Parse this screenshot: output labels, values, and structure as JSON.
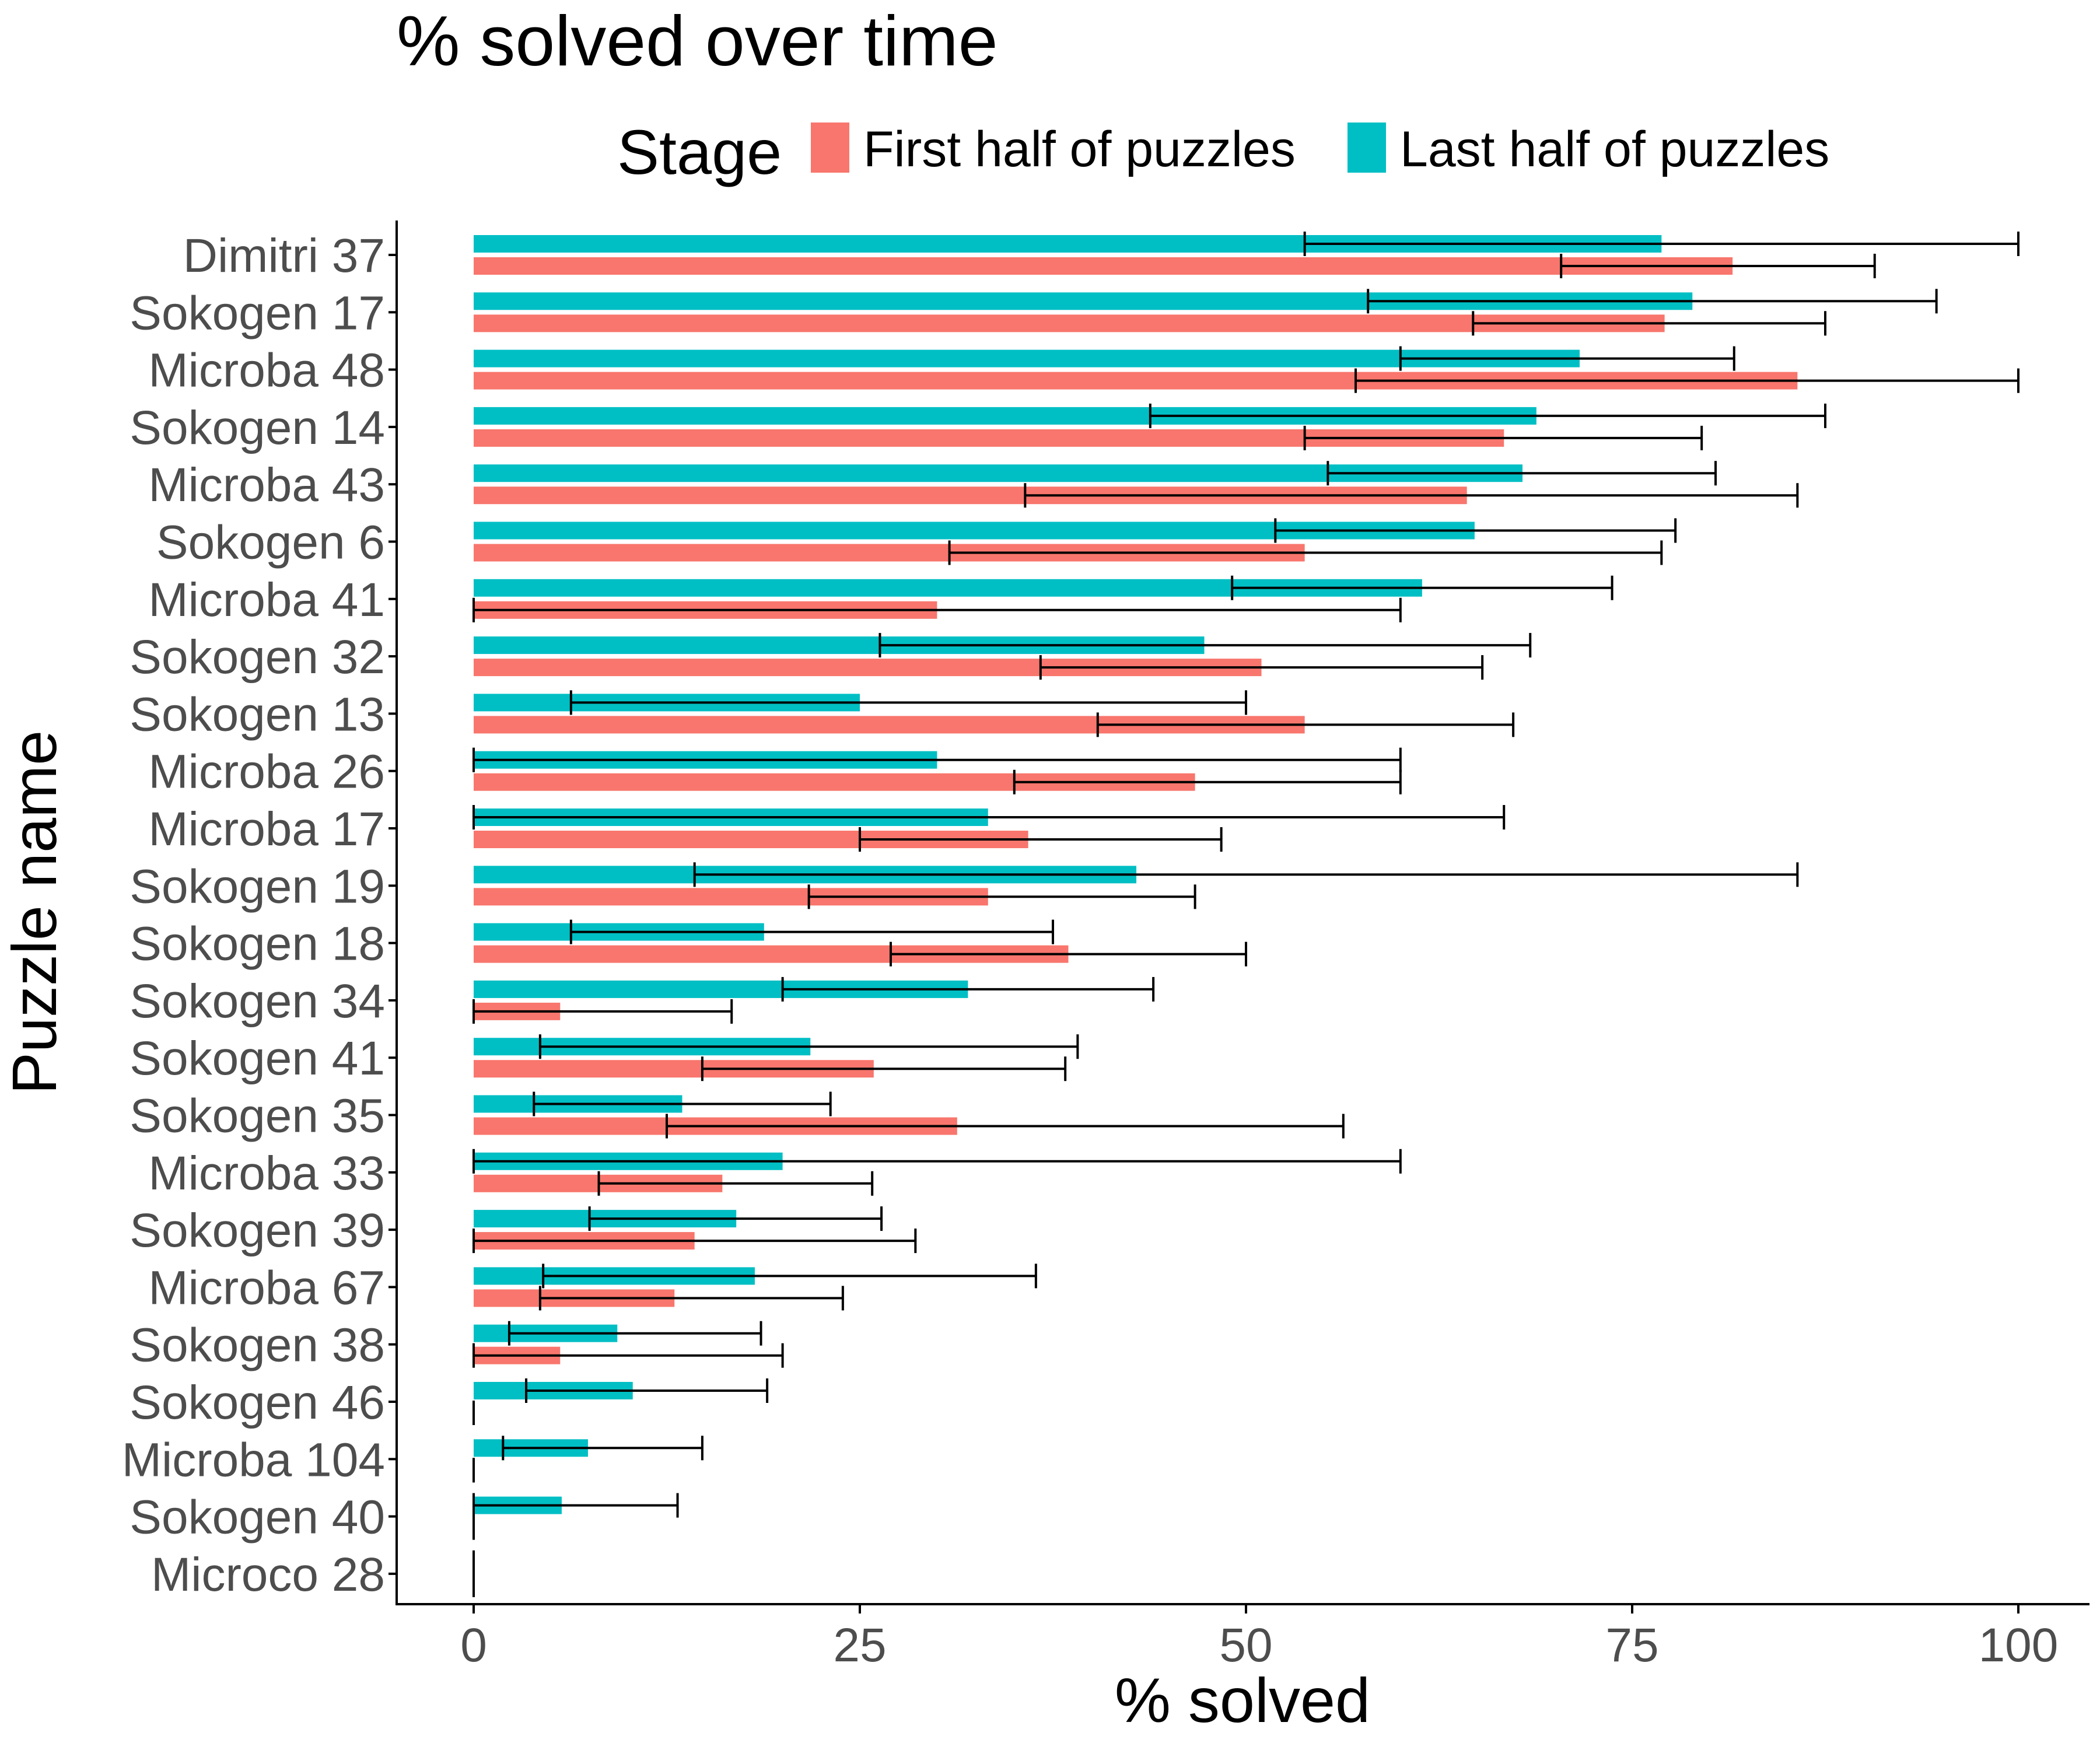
{
  "chart_data": {
    "type": "bar",
    "orientation": "horizontal",
    "title": "% solved over time",
    "xlabel": "% solved",
    "ylabel": "Puzzle name",
    "xlim": [
      -5,
      105
    ],
    "x_ticks": [
      0,
      25,
      50,
      75,
      100
    ],
    "x_tick_labels": [
      "0",
      "25",
      "50",
      "75",
      "100"
    ],
    "grid": false,
    "legend": {
      "title": "Stage",
      "placement": "top",
      "entries": [
        {
          "label": "First half of puzzles",
          "color": "#F8766D"
        },
        {
          "label": "Last half of puzzles",
          "color": "#00BFC4"
        }
      ]
    },
    "categories": [
      "Dimitri 37",
      "Sokogen 17",
      "Microba 48",
      "Sokogen 14",
      "Microba 43",
      "Sokogen 6",
      "Microba 41",
      "Sokogen 32",
      "Sokogen 13",
      "Microba 26",
      "Microba 17",
      "Sokogen 19",
      "Sokogen 18",
      "Sokogen 34",
      "Sokogen 41",
      "Sokogen 35",
      "Microba 33",
      "Sokogen 39",
      "Microba 67",
      "Sokogen 38",
      "Sokogen 46",
      "Microba 104",
      "Sokogen 40",
      "Microco 28"
    ],
    "series": [
      {
        "name": "First half of puzzles",
        "color": "#F8766D",
        "values": [
          81.5,
          77.1,
          85.7,
          66.7,
          64.3,
          53.8,
          30.0,
          51.0,
          53.8,
          46.7,
          35.9,
          33.3,
          38.5,
          5.6,
          25.9,
          31.3,
          16.1,
          14.3,
          13.0,
          5.6,
          0,
          0,
          0,
          0
        ],
        "err_low": [
          70.4,
          64.7,
          57.1,
          53.8,
          35.7,
          30.8,
          0,
          36.7,
          40.4,
          35.0,
          25.0,
          21.7,
          27.0,
          0,
          14.8,
          12.5,
          8.1,
          0,
          4.3,
          0,
          0,
          0,
          0,
          0
        ],
        "err_high": [
          90.7,
          87.5,
          100,
          79.5,
          85.7,
          76.9,
          60.0,
          65.3,
          67.3,
          60.0,
          48.4,
          46.7,
          50.0,
          16.7,
          38.3,
          56.3,
          25.8,
          28.6,
          23.9,
          20.0,
          0,
          0,
          0,
          0
        ]
      },
      {
        "name": "Last half of puzzles",
        "color": "#00BFC4",
        "values": [
          76.9,
          78.9,
          71.6,
          68.8,
          67.9,
          64.8,
          61.4,
          47.3,
          25.0,
          30.0,
          33.3,
          42.9,
          18.8,
          32.0,
          21.8,
          13.5,
          20.0,
          17.0,
          18.2,
          9.3,
          10.3,
          7.4,
          5.7,
          0
        ],
        "err_low": [
          53.8,
          57.9,
          60.0,
          43.8,
          55.3,
          51.9,
          49.1,
          26.3,
          6.3,
          0,
          0,
          14.3,
          6.3,
          20.0,
          4.3,
          3.9,
          0,
          7.5,
          4.5,
          2.3,
          3.4,
          1.9,
          0,
          0
        ],
        "err_high": [
          100,
          94.7,
          81.6,
          87.5,
          80.4,
          77.8,
          73.7,
          68.4,
          50.0,
          60.0,
          66.7,
          85.7,
          37.5,
          44.0,
          39.1,
          23.1,
          60.0,
          26.4,
          36.4,
          18.6,
          19.0,
          14.8,
          13.2,
          0
        ]
      }
    ]
  }
}
